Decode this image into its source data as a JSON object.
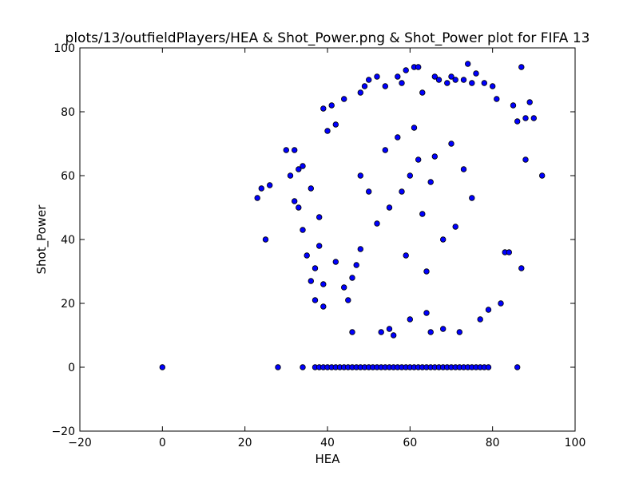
{
  "chart_data": {
    "type": "scatter",
    "title": "plots/13/outfieldPlayers/HEA & Shot_Power.png & Shot_Power plot for FIFA 13",
    "xlabel": "HEA",
    "ylabel": "Shot_Power",
    "xlim": [
      -20,
      100
    ],
    "ylim": [
      -20,
      100
    ],
    "x_ticks": [
      -20,
      0,
      20,
      40,
      60,
      80,
      100
    ],
    "y_ticks": [
      -20,
      0,
      20,
      40,
      60,
      80,
      100
    ],
    "x_tick_labels": [
      "−20",
      "0",
      "20",
      "40",
      "60",
      "80",
      "100"
    ],
    "y_tick_labels": [
      "−20",
      "0",
      "20",
      "40",
      "60",
      "80",
      "100"
    ],
    "grid": false,
    "marker_color": "#0000ff",
    "marker_edge_color": "#000000",
    "points": [
      [
        0,
        0
      ],
      [
        28,
        0
      ],
      [
        34,
        0
      ],
      [
        86,
        0
      ],
      [
        37,
        0
      ],
      [
        38,
        0
      ],
      [
        39,
        0
      ],
      [
        40,
        0
      ],
      [
        41,
        0
      ],
      [
        42,
        0
      ],
      [
        43,
        0
      ],
      [
        44,
        0
      ],
      [
        45,
        0
      ],
      [
        46,
        0
      ],
      [
        47,
        0
      ],
      [
        48,
        0
      ],
      [
        49,
        0
      ],
      [
        50,
        0
      ],
      [
        51,
        0
      ],
      [
        52,
        0
      ],
      [
        53,
        0
      ],
      [
        54,
        0
      ],
      [
        55,
        0
      ],
      [
        56,
        0
      ],
      [
        57,
        0
      ],
      [
        58,
        0
      ],
      [
        59,
        0
      ],
      [
        60,
        0
      ],
      [
        61,
        0
      ],
      [
        62,
        0
      ],
      [
        63,
        0
      ],
      [
        64,
        0
      ],
      [
        65,
        0
      ],
      [
        66,
        0
      ],
      [
        67,
        0
      ],
      [
        68,
        0
      ],
      [
        69,
        0
      ],
      [
        70,
        0
      ],
      [
        71,
        0
      ],
      [
        72,
        0
      ],
      [
        73,
        0
      ],
      [
        74,
        0
      ],
      [
        75,
        0
      ],
      [
        76,
        0
      ],
      [
        77,
        0
      ],
      [
        78,
        0
      ],
      [
        79,
        0
      ],
      [
        23,
        53
      ],
      [
        24,
        56
      ],
      [
        26,
        57
      ],
      [
        25,
        40
      ],
      [
        30,
        68
      ],
      [
        32,
        68
      ],
      [
        31,
        60
      ],
      [
        32,
        52
      ],
      [
        33,
        50
      ],
      [
        33,
        62
      ],
      [
        34,
        63
      ],
      [
        34,
        43
      ],
      [
        35,
        35
      ],
      [
        36,
        27
      ],
      [
        36,
        56
      ],
      [
        37,
        21
      ],
      [
        37,
        31
      ],
      [
        38,
        38
      ],
      [
        38,
        47
      ],
      [
        39,
        19
      ],
      [
        39,
        26
      ],
      [
        39,
        81
      ],
      [
        40,
        74
      ],
      [
        41,
        82
      ],
      [
        42,
        33
      ],
      [
        42,
        76
      ],
      [
        44,
        84
      ],
      [
        44,
        25
      ],
      [
        45,
        21
      ],
      [
        46,
        11
      ],
      [
        46,
        28
      ],
      [
        47,
        32
      ],
      [
        48,
        86
      ],
      [
        48,
        37
      ],
      [
        49,
        88
      ],
      [
        50,
        90
      ],
      [
        52,
        91
      ],
      [
        53,
        11
      ],
      [
        54,
        88
      ],
      [
        55,
        12
      ],
      [
        56,
        10
      ],
      [
        57,
        91
      ],
      [
        58,
        89
      ],
      [
        59,
        93
      ],
      [
        60,
        15
      ],
      [
        61,
        94
      ],
      [
        62,
        94
      ],
      [
        63,
        86
      ],
      [
        64,
        17
      ],
      [
        65,
        11
      ],
      [
        66,
        91
      ],
      [
        67,
        90
      ],
      [
        68,
        12
      ],
      [
        69,
        89
      ],
      [
        70,
        91
      ],
      [
        71,
        90
      ],
      [
        72,
        11
      ],
      [
        73,
        90
      ],
      [
        74,
        95
      ],
      [
        75,
        89
      ],
      [
        76,
        92
      ],
      [
        77,
        15
      ],
      [
        78,
        89
      ],
      [
        79,
        18
      ],
      [
        80,
        88
      ],
      [
        81,
        84
      ],
      [
        82,
        20
      ],
      [
        83,
        36
      ],
      [
        84,
        36
      ],
      [
        85,
        82
      ],
      [
        86,
        77
      ],
      [
        87,
        94
      ],
      [
        87,
        31
      ],
      [
        88,
        78
      ],
      [
        88,
        65
      ],
      [
        89,
        83
      ],
      [
        90,
        78
      ],
      [
        92,
        60
      ],
      [
        60,
        60
      ],
      [
        58,
        55
      ],
      [
        62,
        65
      ],
      [
        55,
        50
      ],
      [
        65,
        58
      ],
      [
        70,
        70
      ],
      [
        52,
        45
      ],
      [
        68,
        40
      ],
      [
        64,
        30
      ],
      [
        57,
        72
      ],
      [
        61,
        75
      ],
      [
        73,
        62
      ],
      [
        75,
        53
      ],
      [
        48,
        60
      ],
      [
        50,
        55
      ],
      [
        66,
        66
      ],
      [
        59,
        35
      ],
      [
        63,
        48
      ],
      [
        71,
        44
      ],
      [
        54,
        68
      ]
    ]
  }
}
